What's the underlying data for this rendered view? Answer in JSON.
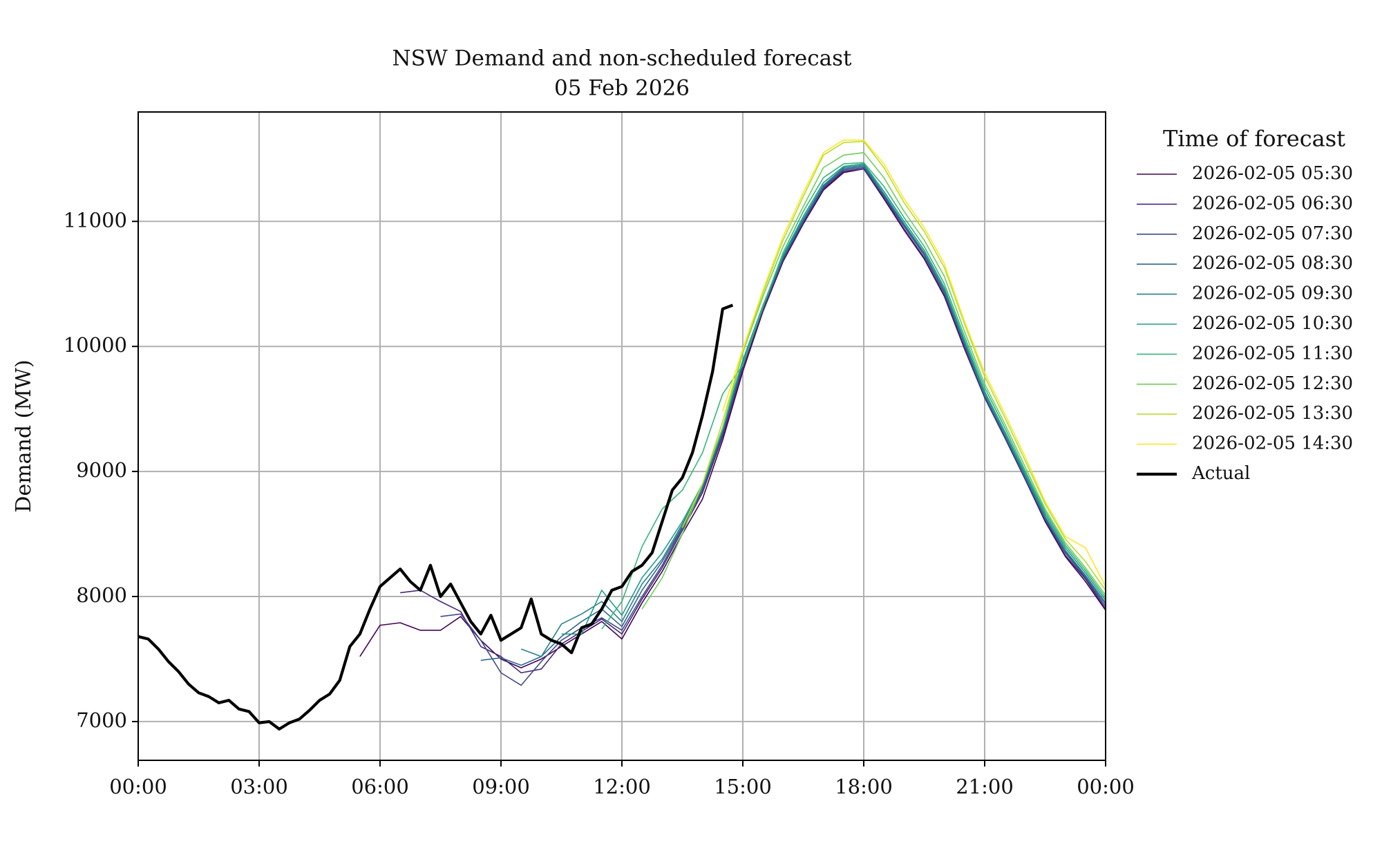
{
  "chart_data": {
    "type": "line",
    "title": "NSW Demand and non-scheduled forecast",
    "subtitle": "05 Feb 2026",
    "y_label": "Demand (MW)",
    "legend_title": "Time of forecast",
    "legend": "outside-right",
    "grid": true,
    "xlim": [
      0,
      24
    ],
    "ylim": [
      6690,
      11875
    ],
    "xticks": [
      {
        "value": 0,
        "label": "00:00"
      },
      {
        "value": 3,
        "label": "03:00"
      },
      {
        "value": 6,
        "label": "06:00"
      },
      {
        "value": 9,
        "label": "09:00"
      },
      {
        "value": 12,
        "label": "12:00"
      },
      {
        "value": 15,
        "label": "15:00"
      },
      {
        "value": 18,
        "label": "18:00"
      },
      {
        "value": 21,
        "label": "21:00"
      },
      {
        "value": 24,
        "label": "00:00"
      }
    ],
    "yticks": [
      7000,
      8000,
      9000,
      10000,
      11000
    ],
    "series": [
      {
        "name": "2026-02-05 05:30",
        "color": "#440154",
        "width": 1.6,
        "x": [
          5.5,
          6,
          6.5,
          7,
          7.5,
          8,
          8.5,
          9,
          9.5,
          10,
          10.5,
          11,
          11.5,
          12,
          12.5,
          13,
          13.5,
          14,
          14.5,
          15,
          15.5,
          16,
          16.5,
          17,
          17.5,
          18,
          18.5,
          19,
          19.5,
          20,
          20.5,
          21,
          21.5,
          22,
          22.5,
          23,
          23.5,
          24
        ],
        "values": [
          7520,
          7770,
          7790,
          7730,
          7730,
          7840,
          7650,
          7500,
          7430,
          7500,
          7600,
          7700,
          7800,
          7660,
          7950,
          8200,
          8500,
          8780,
          9250,
          9800,
          10280,
          10680,
          10980,
          11250,
          11390,
          11420,
          11180,
          10930,
          10700,
          10400,
          9980,
          9590,
          9270,
          8940,
          8600,
          8320,
          8120,
          7890
        ]
      },
      {
        "name": "2026-02-05 06:30",
        "color": "#482878",
        "width": 1.6,
        "x": [
          6.5,
          7,
          7.5,
          8,
          8.5,
          9,
          9.5,
          10,
          10.5,
          11,
          11.5,
          12,
          12.5,
          13,
          13.5,
          14,
          14.5,
          15,
          15.5,
          16,
          16.5,
          17,
          17.5,
          18,
          18.5,
          19,
          19.5,
          20,
          20.5,
          21,
          21.5,
          22,
          22.5,
          23,
          23.5,
          24
        ],
        "values": [
          8030,
          8050,
          7960,
          7880,
          7600,
          7520,
          7390,
          7420,
          7620,
          7720,
          7820,
          7700,
          7980,
          8230,
          8530,
          8830,
          9280,
          9830,
          10290,
          10690,
          10990,
          11260,
          11400,
          11420,
          11190,
          10940,
          10710,
          10410,
          9990,
          9590,
          9270,
          8940,
          8610,
          8330,
          8140,
          7900
        ]
      },
      {
        "name": "2026-02-05 07:30",
        "color": "#3e4989",
        "width": 1.6,
        "x": [
          7.5,
          8,
          8.5,
          9,
          9.5,
          10,
          10.5,
          11,
          11.5,
          12,
          12.5,
          13,
          13.5,
          14,
          14.5,
          15,
          15.5,
          16,
          16.5,
          17,
          17.5,
          18,
          18.5,
          19,
          19.5,
          20,
          20.5,
          21,
          21.5,
          22,
          22.5,
          23,
          23.5,
          24
        ],
        "values": [
          7840,
          7860,
          7650,
          7390,
          7290,
          7480,
          7650,
          7750,
          7830,
          7730,
          8000,
          8250,
          8550,
          8850,
          9300,
          9850,
          10300,
          10700,
          11000,
          11270,
          11410,
          11430,
          11200,
          10960,
          10730,
          10430,
          10010,
          9600,
          9280,
          8950,
          8620,
          8350,
          8150,
          7920
        ]
      },
      {
        "name": "2026-02-05 08:30",
        "color": "#31688e",
        "width": 1.6,
        "x": [
          8.5,
          9,
          9.5,
          10,
          10.5,
          11,
          11.5,
          12,
          12.5,
          13,
          13.5,
          14,
          14.5,
          15,
          15.5,
          16,
          16.5,
          17,
          17.5,
          18,
          18.5,
          19,
          19.5,
          20,
          20.5,
          21,
          21.5,
          22,
          22.5,
          23,
          23.5,
          24
        ],
        "values": [
          7490,
          7510,
          7450,
          7520,
          7680,
          7800,
          7900,
          7760,
          8050,
          8280,
          8560,
          8860,
          9320,
          9870,
          10310,
          10710,
          11010,
          11280,
          11420,
          11440,
          11210,
          10970,
          10740,
          10440,
          10020,
          9610,
          9290,
          8960,
          8630,
          8360,
          8160,
          7940
        ]
      },
      {
        "name": "2026-02-05 09:30",
        "color": "#26828e",
        "width": 1.6,
        "x": [
          9.5,
          10,
          10.5,
          11,
          11.5,
          12,
          12.5,
          13,
          13.5,
          14,
          14.5,
          15,
          15.5,
          16,
          16.5,
          17,
          17.5,
          18,
          18.5,
          19,
          19.5,
          20,
          20.5,
          21,
          21.5,
          22,
          22.5,
          23,
          23.5,
          24
        ],
        "values": [
          7580,
          7520,
          7780,
          7860,
          7960,
          7800,
          8100,
          8300,
          8580,
          8880,
          9340,
          9880,
          10320,
          10720,
          11020,
          11290,
          11430,
          11450,
          11220,
          10980,
          10750,
          10450,
          10030,
          9620,
          9300,
          8970,
          8640,
          8370,
          8170,
          7950
        ]
      },
      {
        "name": "2026-02-05 10:30",
        "color": "#1f9e89",
        "width": 1.6,
        "x": [
          10.5,
          11,
          11.5,
          12,
          12.5,
          13,
          13.5,
          14,
          14.5,
          15,
          15.5,
          16,
          16.5,
          17,
          17.5,
          18,
          18.5,
          19,
          19.5,
          20,
          20.5,
          21,
          21.5,
          22,
          22.5,
          23,
          23.5,
          24
        ],
        "values": [
          7700,
          7700,
          8050,
          7850,
          8150,
          8350,
          8600,
          8900,
          9350,
          9890,
          10330,
          10730,
          11040,
          11310,
          11440,
          11460,
          11240,
          11000,
          10770,
          10470,
          10050,
          9640,
          9320,
          8990,
          8660,
          8390,
          8190,
          7970
        ]
      },
      {
        "name": "2026-02-05 11:30",
        "color": "#35b779",
        "width": 1.6,
        "x": [
          11.5,
          12,
          12.5,
          13,
          13.5,
          14,
          14.5,
          15,
          15.5,
          16,
          16.5,
          17,
          17.5,
          18,
          18.5,
          19,
          19.5,
          20,
          20.5,
          21,
          21.5,
          22,
          22.5,
          23,
          23.5,
          24
        ],
        "values": [
          7740,
          7960,
          8400,
          8700,
          8850,
          9150,
          9620,
          9850,
          10320,
          10750,
          11080,
          11350,
          11460,
          11470,
          11280,
          11030,
          10800,
          10500,
          10080,
          9670,
          9350,
          9010,
          8680,
          8410,
          8210,
          7990
        ]
      },
      {
        "name": "2026-02-05 12:30",
        "color": "#6ece58",
        "width": 1.6,
        "x": [
          12.5,
          13,
          13.5,
          14,
          14.5,
          15,
          15.5,
          16,
          16.5,
          17,
          17.5,
          18,
          18.5,
          19,
          19.5,
          20,
          20.5,
          21,
          21.5,
          22,
          22.5,
          23,
          23.5,
          24
        ],
        "values": [
          7900,
          8150,
          8500,
          8900,
          9350,
          9950,
          10400,
          10800,
          11120,
          11430,
          11530,
          11550,
          11350,
          11080,
          10850,
          10560,
          10120,
          9700,
          9380,
          9040,
          8700,
          8430,
          8230,
          8010
        ]
      },
      {
        "name": "2026-02-05 13:30",
        "color": "#b5de2b",
        "width": 1.6,
        "x": [
          13.5,
          14,
          14.5,
          15,
          15.5,
          16,
          16.5,
          17,
          17.5,
          18,
          18.5,
          19,
          19.5,
          20,
          20.5,
          21,
          21.5,
          22,
          22.5,
          23,
          23.5,
          24
        ],
        "values": [
          8550,
          8900,
          9400,
          9960,
          10430,
          10850,
          11200,
          11530,
          11630,
          11640,
          11430,
          11150,
          10920,
          10630,
          10180,
          9760,
          9430,
          9090,
          8740,
          8460,
          8280,
          8050
        ]
      },
      {
        "name": "2026-02-05 14:30",
        "color": "#fde725",
        "width": 1.6,
        "x": [
          14.5,
          15,
          15.5,
          16,
          16.5,
          17,
          17.5,
          18,
          18.5,
          19,
          19.5,
          20,
          20.5,
          21,
          21.5,
          22,
          22.5,
          23,
          23.5,
          24
        ],
        "values": [
          9480,
          9980,
          10450,
          10880,
          11230,
          11550,
          11650,
          11650,
          11460,
          11180,
          10950,
          10660,
          10200,
          9790,
          9460,
          9120,
          8760,
          8480,
          8390,
          8080
        ]
      },
      {
        "name": "Actual",
        "color": "#000000",
        "width": 4.2,
        "x": [
          0,
          0.25,
          0.5,
          0.75,
          1,
          1.25,
          1.5,
          1.75,
          2,
          2.25,
          2.5,
          2.75,
          3,
          3.25,
          3.5,
          3.75,
          4,
          4.25,
          4.5,
          4.75,
          5,
          5.25,
          5.5,
          5.75,
          6,
          6.25,
          6.5,
          6.75,
          7,
          7.25,
          7.5,
          7.75,
          8,
          8.25,
          8.5,
          8.75,
          9,
          9.25,
          9.5,
          9.75,
          10,
          10.25,
          10.5,
          10.75,
          11,
          11.25,
          11.5,
          11.75,
          12,
          12.25,
          12.5,
          12.75,
          13,
          13.25,
          13.5,
          13.75,
          14,
          14.25,
          14.5,
          14.75
        ],
        "values": [
          7680,
          7660,
          7580,
          7480,
          7400,
          7300,
          7230,
          7200,
          7150,
          7170,
          7100,
          7080,
          6990,
          7000,
          6940,
          6990,
          7020,
          7090,
          7170,
          7220,
          7330,
          7600,
          7700,
          7900,
          8080,
          8150,
          8220,
          8120,
          8050,
          8250,
          8000,
          8100,
          7950,
          7800,
          7700,
          7850,
          7650,
          7700,
          7750,
          7980,
          7700,
          7650,
          7620,
          7550,
          7750,
          7780,
          7900,
          8050,
          8080,
          8200,
          8250,
          8350,
          8600,
          8850,
          8950,
          9150,
          9450,
          9800,
          10300,
          10330
        ]
      }
    ]
  }
}
